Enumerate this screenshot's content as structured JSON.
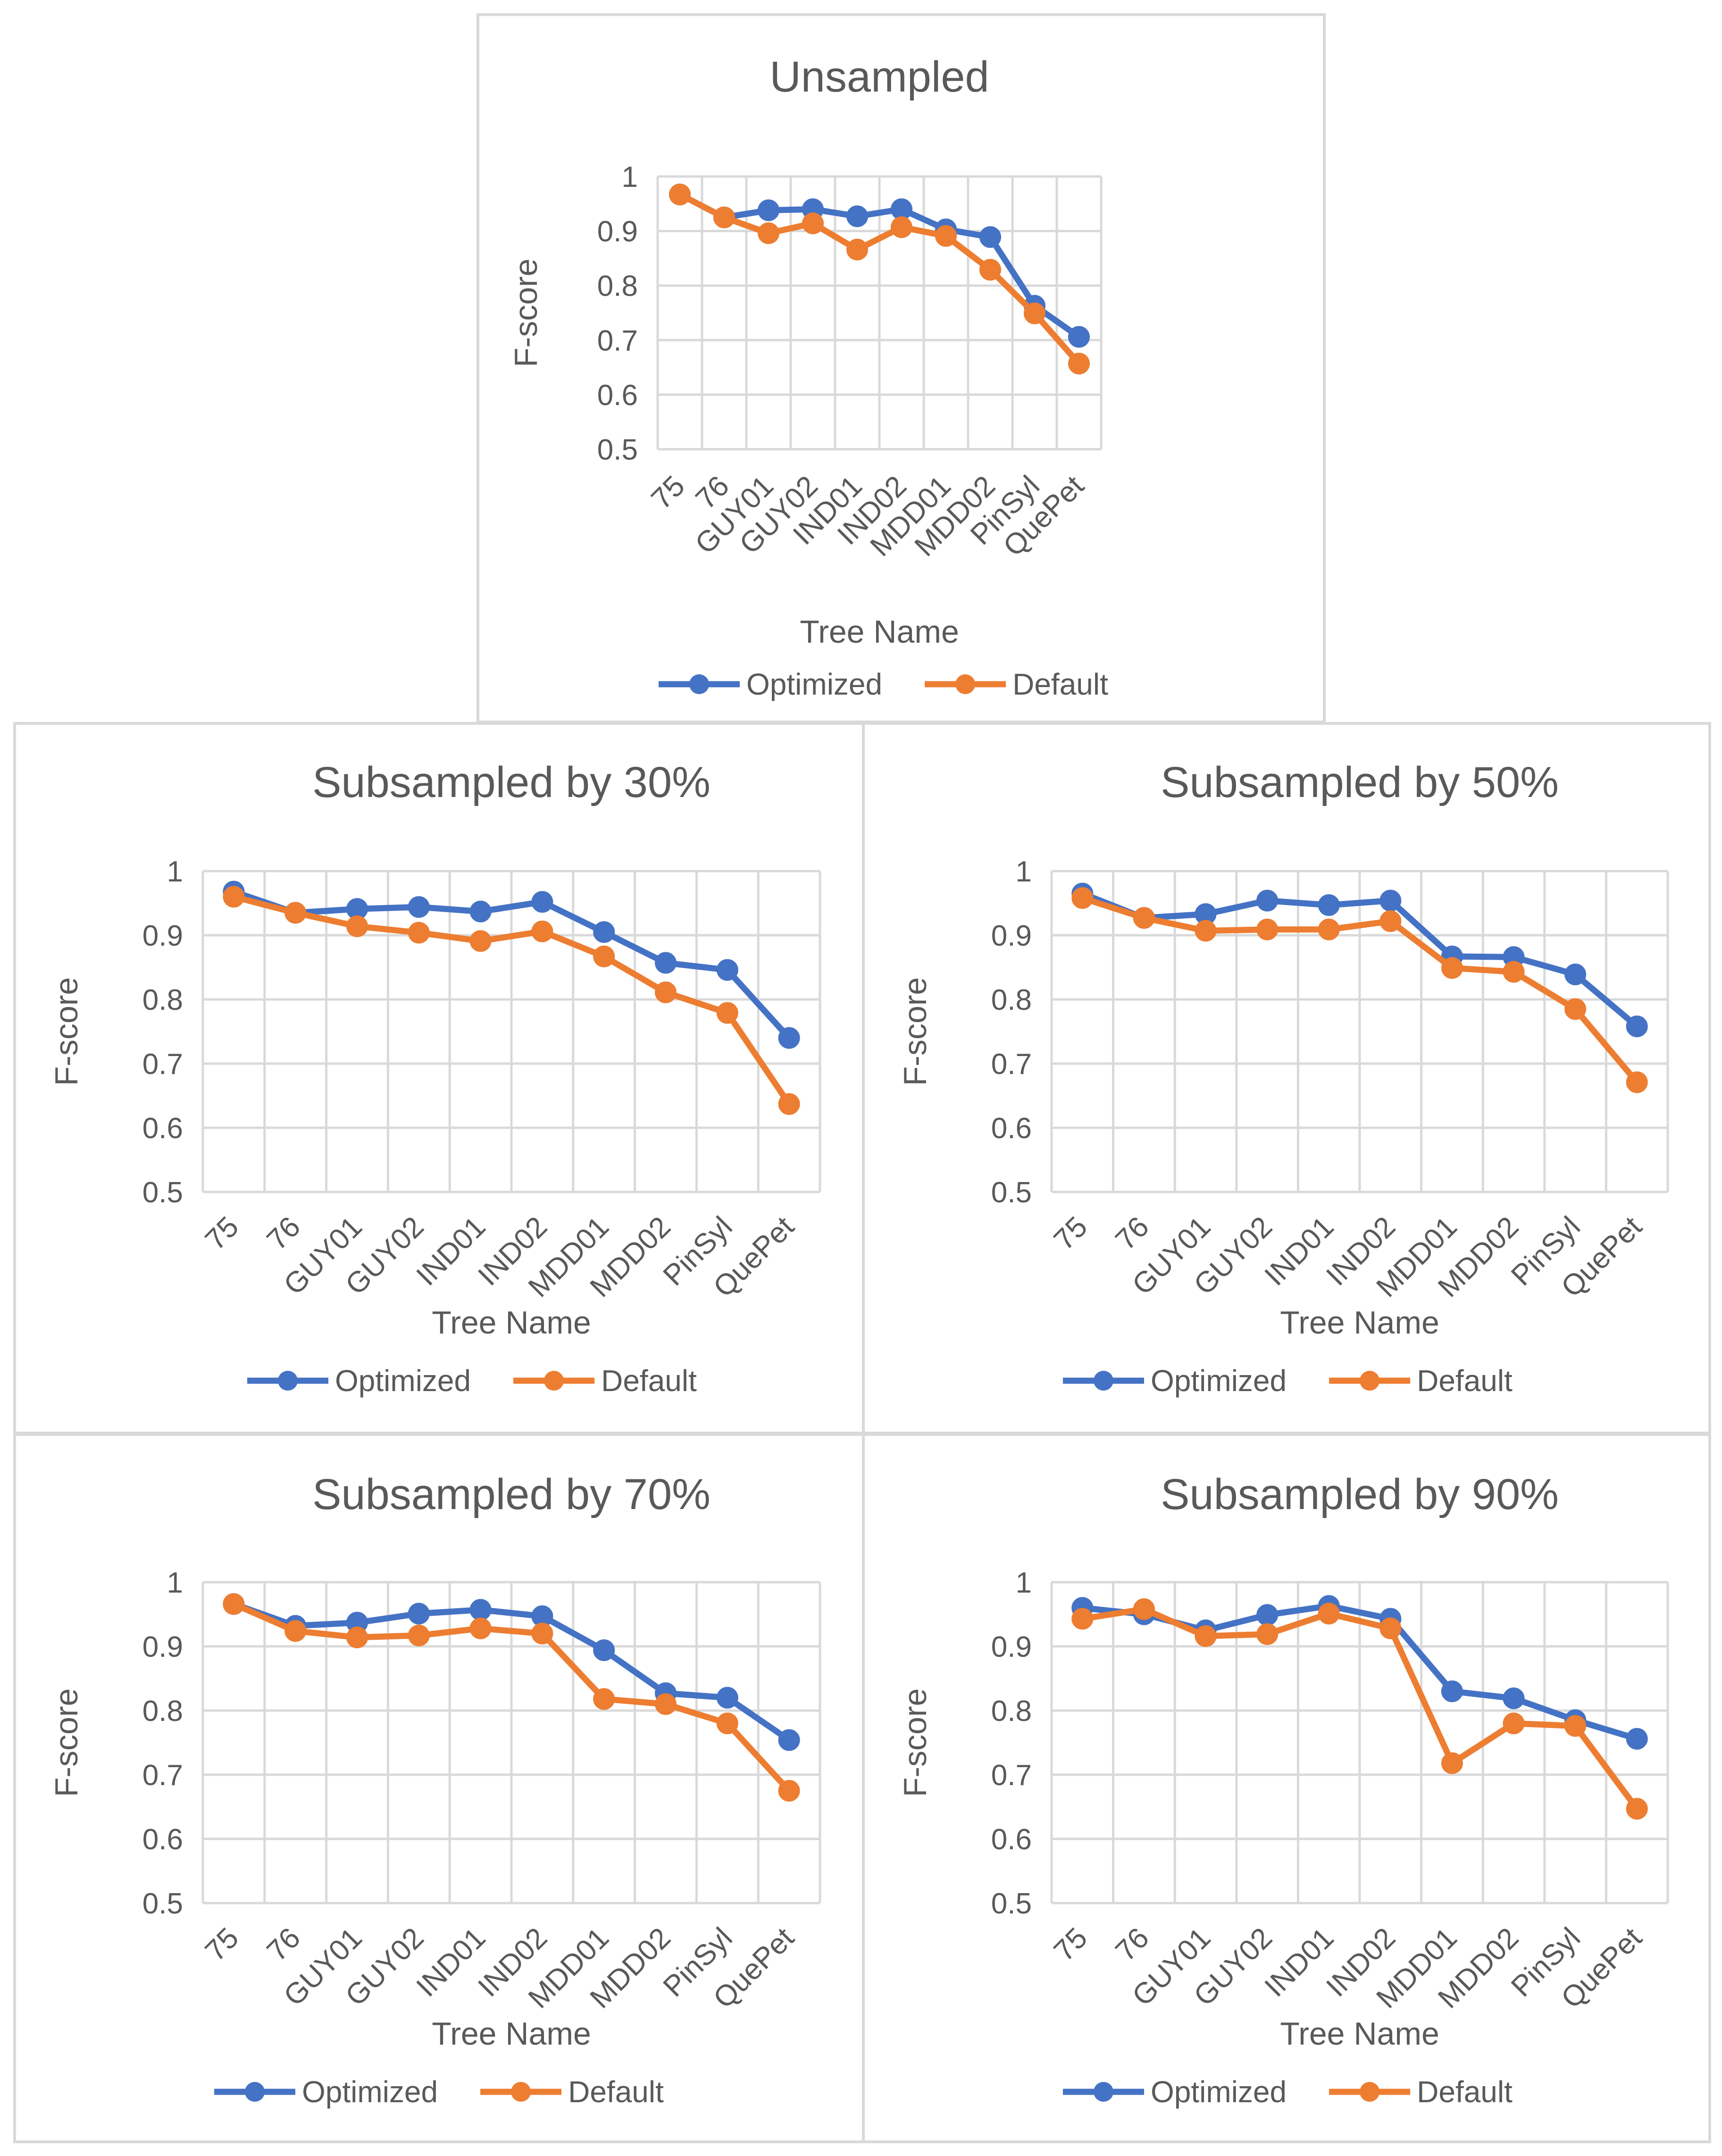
{
  "chart_data": [
    {
      "type": "line",
      "title": "Unsampled",
      "xlabel": "Tree Name",
      "ylabel": "F-score",
      "ylim": [
        0.5,
        1
      ],
      "yticks": [
        "0.5",
        "0.6",
        "0.7",
        "0.8",
        "0.9",
        "1"
      ],
      "categories": [
        "75",
        "76",
        "GUY01",
        "GUY02",
        "IND01",
        "IND02",
        "MDD01",
        "MDD02",
        "PinSyl",
        "QuePet"
      ],
      "grid": true,
      "legend": "bottom",
      "series": [
        {
          "name": "Optimized",
          "color": "#4472C4",
          "values": [
            0.967,
            0.925,
            0.938,
            0.94,
            0.927,
            0.94,
            0.903,
            0.889,
            0.763,
            0.706
          ]
        },
        {
          "name": "Default",
          "color": "#ED7D31",
          "values": [
            0.967,
            0.925,
            0.896,
            0.914,
            0.866,
            0.907,
            0.891,
            0.829,
            0.749,
            0.657
          ]
        }
      ]
    },
    {
      "type": "line",
      "title": "Subsampled by 30%",
      "xlabel": "Tree Name",
      "ylabel": "F-score",
      "ylim": [
        0.5,
        1
      ],
      "yticks": [
        "0.5",
        "0.6",
        "0.7",
        "0.8",
        "0.9",
        "1"
      ],
      "categories": [
        "75",
        "76",
        "GUY01",
        "GUY02",
        "IND01",
        "IND02",
        "MDD01",
        "MDD02",
        "PinSyl",
        "QuePet"
      ],
      "grid": true,
      "legend": "bottom",
      "series": [
        {
          "name": "Optimized",
          "color": "#4472C4",
          "values": [
            0.968,
            0.935,
            0.941,
            0.944,
            0.937,
            0.952,
            0.905,
            0.857,
            0.846,
            0.74
          ]
        },
        {
          "name": "Default",
          "color": "#ED7D31",
          "values": [
            0.96,
            0.935,
            0.914,
            0.904,
            0.891,
            0.906,
            0.867,
            0.811,
            0.779,
            0.637
          ]
        }
      ]
    },
    {
      "type": "line",
      "title": "Subsampled by 50%",
      "xlabel": "Tree Name",
      "ylabel": "F-score",
      "ylim": [
        0.5,
        1
      ],
      "yticks": [
        "0.5",
        "0.6",
        "0.7",
        "0.8",
        "0.9",
        "1"
      ],
      "categories": [
        "75",
        "76",
        "GUY01",
        "GUY02",
        "IND01",
        "IND02",
        "MDD01",
        "MDD02",
        "PinSyl",
        "QuePet"
      ],
      "grid": true,
      "legend": "bottom",
      "series": [
        {
          "name": "Optimized",
          "color": "#4472C4",
          "values": [
            0.965,
            0.927,
            0.933,
            0.954,
            0.947,
            0.954,
            0.867,
            0.866,
            0.839,
            0.758
          ]
        },
        {
          "name": "Default",
          "color": "#ED7D31",
          "values": [
            0.958,
            0.927,
            0.907,
            0.909,
            0.909,
            0.922,
            0.849,
            0.843,
            0.785,
            0.671
          ]
        }
      ]
    },
    {
      "type": "line",
      "title": "Subsampled by 70%",
      "xlabel": "Tree Name",
      "ylabel": "F-score",
      "ylim": [
        0.5,
        1
      ],
      "yticks": [
        "0.5",
        "0.6",
        "0.7",
        "0.8",
        "0.9",
        "1"
      ],
      "categories": [
        "75",
        "76",
        "GUY01",
        "GUY02",
        "IND01",
        "IND02",
        "MDD01",
        "MDD02",
        "PinSyl",
        "QuePet"
      ],
      "grid": true,
      "legend": "bottom",
      "series": [
        {
          "name": "Optimized",
          "color": "#4472C4",
          "values": [
            0.966,
            0.932,
            0.937,
            0.951,
            0.957,
            0.947,
            0.894,
            0.827,
            0.82,
            0.754
          ]
        },
        {
          "name": "Default",
          "color": "#ED7D31",
          "values": [
            0.966,
            0.924,
            0.914,
            0.917,
            0.928,
            0.92,
            0.818,
            0.81,
            0.78,
            0.675
          ]
        }
      ]
    },
    {
      "type": "line",
      "title": "Subsampled by 90%",
      "xlabel": "Tree Name",
      "ylabel": "F-score",
      "ylim": [
        0.5,
        1
      ],
      "yticks": [
        "0.5",
        "0.6",
        "0.7",
        "0.8",
        "0.9",
        "1"
      ],
      "categories": [
        "75",
        "76",
        "GUY01",
        "GUY02",
        "IND01",
        "IND02",
        "MDD01",
        "MDD02",
        "PinSyl",
        "QuePet"
      ],
      "grid": true,
      "legend": "bottom",
      "series": [
        {
          "name": "Optimized",
          "color": "#4472C4",
          "values": [
            0.96,
            0.95,
            0.925,
            0.949,
            0.963,
            0.943,
            0.83,
            0.819,
            0.785,
            0.756
          ]
        },
        {
          "name": "Default",
          "color": "#ED7D31",
          "values": [
            0.943,
            0.958,
            0.916,
            0.919,
            0.951,
            0.928,
            0.718,
            0.78,
            0.776,
            0.647
          ]
        }
      ]
    }
  ]
}
